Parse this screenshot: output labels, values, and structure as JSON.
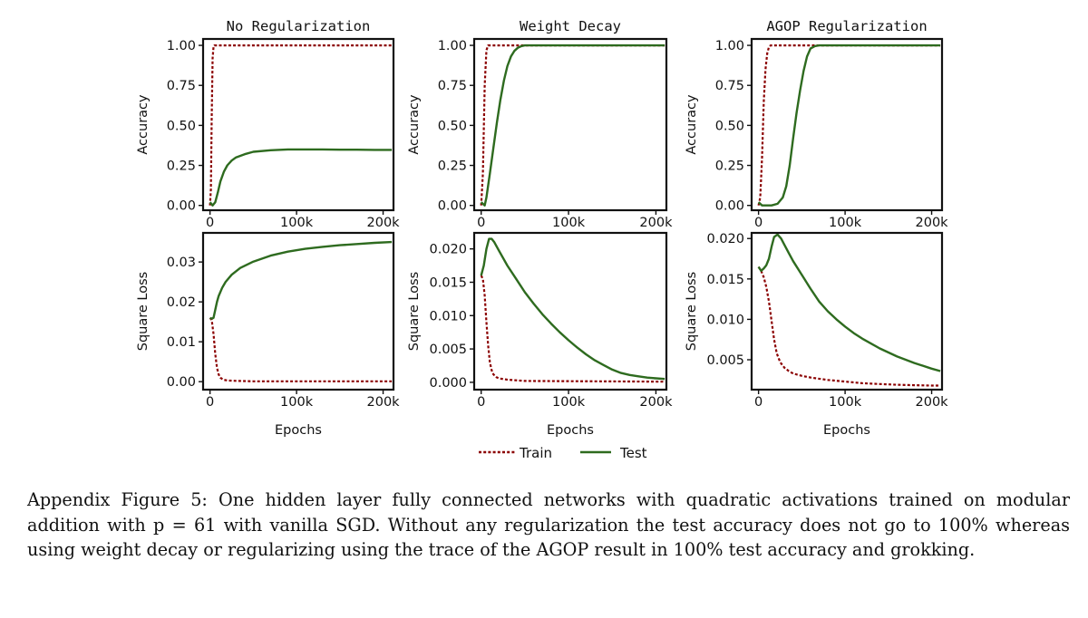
{
  "figure": {
    "caption": "Appendix Figure 5: One hidden layer fully connected networks with quadratic activations trained on modular addition with p = 61 with vanilla SGD. Without any regularization the test accuracy does not go to 100% whereas using weight decay or regularizing using the trace of the AGOP result in 100% test accuracy and grokking.",
    "colors": {
      "train": "#8b0000",
      "test": "#2e6b1f",
      "axis": "#111111"
    },
    "legend": {
      "placement": "bottom-center",
      "train_label": "Train",
      "test_label": "Test"
    }
  },
  "chart_data": [
    {
      "type": "line",
      "title": "No Regularization",
      "xlabel": "",
      "ylabel": "Accuracy",
      "xlim": [
        -8000,
        212000
      ],
      "ylim": [
        -0.03,
        1.04
      ],
      "xticks": [
        0,
        100000,
        200000
      ],
      "xticklabels": [
        "0",
        "100k",
        "200k"
      ],
      "yticks": [
        0,
        0.25,
        0.5,
        0.75,
        1.0
      ],
      "yticklabels": [
        "0.00",
        "0.25",
        "0.50",
        "0.75",
        "1.00"
      ],
      "series": [
        {
          "name": "Train",
          "x": [
            0,
            1000,
            2000,
            3000,
            4000,
            5000,
            210000
          ],
          "y": [
            0,
            0.1,
            0.55,
            0.92,
            0.99,
            1.0,
            1.0
          ]
        },
        {
          "name": "Test",
          "x": [
            0,
            3000,
            6000,
            9000,
            12000,
            16000,
            20000,
            25000,
            30000,
            40000,
            50000,
            70000,
            90000,
            110000,
            130000,
            150000,
            170000,
            190000,
            210000
          ],
          "y": [
            0.02,
            0.0,
            0.02,
            0.08,
            0.15,
            0.21,
            0.25,
            0.28,
            0.3,
            0.32,
            0.335,
            0.345,
            0.35,
            0.35,
            0.35,
            0.348,
            0.348,
            0.347,
            0.347
          ]
        }
      ]
    },
    {
      "type": "line",
      "title": "Weight Decay",
      "xlabel": "",
      "ylabel": "Accuracy",
      "xlim": [
        -8000,
        212000
      ],
      "ylim": [
        -0.03,
        1.04
      ],
      "xticks": [
        0,
        100000,
        200000
      ],
      "xticklabels": [
        "0",
        "100k",
        "200k"
      ],
      "yticks": [
        0,
        0.25,
        0.5,
        0.75,
        1.0
      ],
      "yticklabels": [
        "0.00",
        "0.25",
        "0.50",
        "0.75",
        "1.00"
      ],
      "series": [
        {
          "name": "Train",
          "x": [
            0,
            2000,
            4000,
            6000,
            8000,
            210000
          ],
          "y": [
            0,
            0.2,
            0.75,
            0.97,
            1.0,
            1.0
          ]
        },
        {
          "name": "Test",
          "x": [
            0,
            4000,
            6000,
            10000,
            14000,
            18000,
            22000,
            26000,
            30000,
            34000,
            38000,
            42000,
            46000,
            50000,
            55000,
            60000,
            70000,
            210000
          ],
          "y": [
            0.02,
            0.0,
            0.05,
            0.2,
            0.36,
            0.52,
            0.66,
            0.78,
            0.87,
            0.93,
            0.965,
            0.985,
            0.995,
            1.0,
            1.0,
            1.0,
            1.0,
            1.0
          ]
        }
      ]
    },
    {
      "type": "line",
      "title": "AGOP Regularization",
      "xlabel": "",
      "ylabel": "Accuracy",
      "xlim": [
        -8000,
        212000
      ],
      "ylim": [
        -0.03,
        1.04
      ],
      "xticks": [
        0,
        100000,
        200000
      ],
      "xticklabels": [
        "0",
        "100k",
        "200k"
      ],
      "yticks": [
        0,
        0.25,
        0.5,
        0.75,
        1.0
      ],
      "yticklabels": [
        "0.00",
        "0.25",
        "0.50",
        "0.75",
        "1.00"
      ],
      "series": [
        {
          "name": "Train",
          "x": [
            0,
            2000,
            4000,
            6000,
            8000,
            10000,
            12000,
            14000,
            210000
          ],
          "y": [
            0,
            0.05,
            0.3,
            0.65,
            0.85,
            0.95,
            0.99,
            1.0,
            1.0
          ]
        },
        {
          "name": "Test",
          "x": [
            0,
            4000,
            8000,
            15000,
            22000,
            28000,
            32000,
            36000,
            40000,
            44000,
            48000,
            52000,
            56000,
            60000,
            65000,
            70000,
            80000,
            210000
          ],
          "y": [
            0.02,
            0.0,
            0.0,
            0.0,
            0.01,
            0.05,
            0.12,
            0.25,
            0.42,
            0.58,
            0.72,
            0.84,
            0.93,
            0.98,
            0.995,
            1.0,
            1.0,
            1.0
          ]
        }
      ]
    },
    {
      "type": "line",
      "title": "",
      "xlabel": "Epochs",
      "ylabel": "Square Loss",
      "xlim": [
        -8000,
        212000
      ],
      "ylim": [
        -0.002,
        0.0373
      ],
      "xticks": [
        0,
        100000,
        200000
      ],
      "xticklabels": [
        "0",
        "100k",
        "200k"
      ],
      "yticks": [
        0,
        0.01,
        0.02,
        0.03
      ],
      "yticklabels": [
        "0.00",
        "0.01",
        "0.02",
        "0.03"
      ],
      "series": [
        {
          "name": "Train",
          "x": [
            0,
            2000,
            4000,
            6000,
            8000,
            10000,
            12000,
            15000,
            20000,
            30000,
            50000,
            210000
          ],
          "y": [
            0.016,
            0.0155,
            0.012,
            0.007,
            0.0035,
            0.0018,
            0.001,
            0.0005,
            0.0003,
            0.0002,
            0.0001,
            0.0001
          ]
        },
        {
          "name": "Test",
          "x": [
            0,
            2000,
            4000,
            6000,
            8000,
            10000,
            14000,
            18000,
            25000,
            35000,
            50000,
            70000,
            90000,
            110000,
            130000,
            150000,
            170000,
            190000,
            210000
          ],
          "y": [
            0.016,
            0.0158,
            0.016,
            0.018,
            0.02,
            0.0215,
            0.0235,
            0.025,
            0.0268,
            0.0285,
            0.0301,
            0.0316,
            0.0326,
            0.0333,
            0.0338,
            0.0342,
            0.0345,
            0.0348,
            0.035
          ]
        }
      ]
    },
    {
      "type": "line",
      "title": "",
      "xlabel": "Epochs",
      "ylabel": "Square Loss",
      "xlim": [
        -8000,
        212000
      ],
      "ylim": [
        -0.0011,
        0.0224
      ],
      "xticks": [
        0,
        100000,
        200000
      ],
      "xticklabels": [
        "0",
        "100k",
        "200k"
      ],
      "yticks": [
        0,
        0.005,
        0.01,
        0.015,
        0.02
      ],
      "yticklabels": [
        "0.000",
        "0.005",
        "0.010",
        "0.015",
        "0.020"
      ],
      "series": [
        {
          "name": "Train",
          "x": [
            0,
            2000,
            4000,
            6000,
            8000,
            10000,
            12000,
            14000,
            17000,
            20000,
            30000,
            50000,
            210000
          ],
          "y": [
            0.016,
            0.0155,
            0.013,
            0.009,
            0.0055,
            0.003,
            0.0018,
            0.0012,
            0.0008,
            0.0006,
            0.0004,
            0.0002,
            0.0001
          ]
        },
        {
          "name": "Test",
          "x": [
            0,
            3000,
            6000,
            9000,
            12000,
            15000,
            20000,
            30000,
            40000,
            50000,
            60000,
            70000,
            80000,
            90000,
            100000,
            110000,
            120000,
            130000,
            140000,
            150000,
            160000,
            170000,
            180000,
            190000,
            200000,
            210000
          ],
          "y": [
            0.016,
            0.0175,
            0.02,
            0.0215,
            0.0215,
            0.021,
            0.0198,
            0.0175,
            0.0155,
            0.0135,
            0.0118,
            0.0102,
            0.0088,
            0.0075,
            0.0063,
            0.0052,
            0.0042,
            0.0033,
            0.0026,
            0.0019,
            0.0014,
            0.0011,
            0.0009,
            0.0007,
            0.0006,
            0.0005
          ]
        }
      ]
    },
    {
      "type": "line",
      "title": "",
      "xlabel": "Epochs",
      "ylabel": "Square Loss",
      "xlim": [
        -8000,
        212000
      ],
      "ylim": [
        0.0013,
        0.0207
      ],
      "xticks": [
        0,
        100000,
        200000
      ],
      "xticklabels": [
        "0",
        "100k",
        "200k"
      ],
      "yticks": [
        0.005,
        0.01,
        0.015,
        0.02
      ],
      "yticklabels": [
        "0.005",
        "0.010",
        "0.015",
        "0.020"
      ],
      "series": [
        {
          "name": "Train",
          "x": [
            0,
            3000,
            6000,
            9000,
            12000,
            15000,
            18000,
            21000,
            25000,
            30000,
            35000,
            40000,
            50000,
            60000,
            80000,
            100000,
            120000,
            140000,
            160000,
            180000,
            200000,
            210000
          ],
          "y": [
            0.0165,
            0.016,
            0.0152,
            0.014,
            0.0122,
            0.0098,
            0.0075,
            0.0058,
            0.0047,
            0.004,
            0.0036,
            0.0033,
            0.003,
            0.0028,
            0.0025,
            0.0023,
            0.0021,
            0.002,
            0.0019,
            0.00185,
            0.0018,
            0.0018
          ]
        },
        {
          "name": "Test",
          "x": [
            0,
            3000,
            6000,
            9000,
            12000,
            15000,
            18000,
            22000,
            26000,
            30000,
            35000,
            40000,
            50000,
            60000,
            70000,
            80000,
            90000,
            100000,
            110000,
            120000,
            140000,
            160000,
            180000,
            200000,
            210000
          ],
          "y": [
            0.0165,
            0.016,
            0.0163,
            0.0167,
            0.0175,
            0.019,
            0.0202,
            0.0205,
            0.02,
            0.0192,
            0.0182,
            0.0172,
            0.0155,
            0.0138,
            0.0122,
            0.011,
            0.01,
            0.0091,
            0.0083,
            0.0076,
            0.0064,
            0.0054,
            0.0046,
            0.0039,
            0.0036
          ]
        }
      ]
    }
  ]
}
